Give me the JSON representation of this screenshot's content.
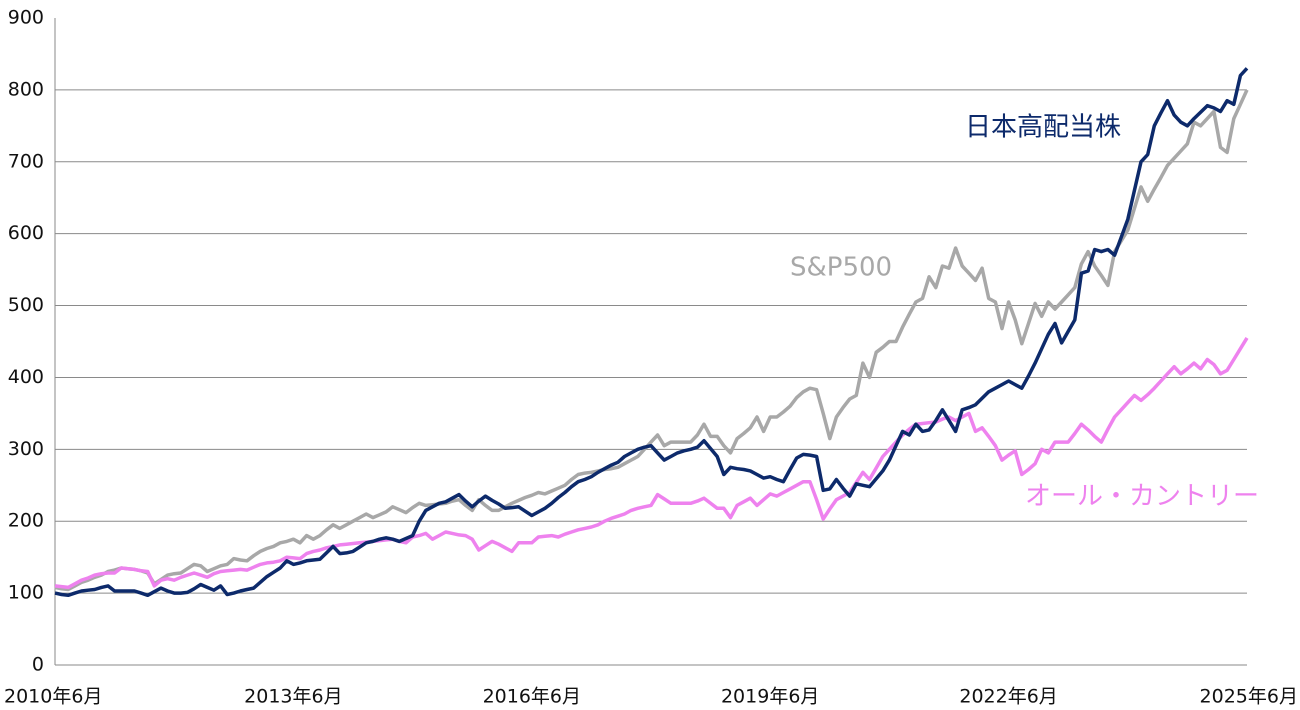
{
  "chart_data": {
    "type": "line",
    "categories": [
      "2010年6月",
      null,
      null,
      null,
      null,
      null,
      null,
      null,
      null,
      null,
      null,
      null,
      null,
      null,
      null,
      null,
      null,
      null,
      null,
      null,
      null,
      null,
      null,
      null,
      null,
      null,
      null,
      null,
      null,
      null,
      null,
      null,
      null,
      null,
      null,
      null,
      "2013年6月",
      null,
      null,
      null,
      null,
      null,
      null,
      null,
      null,
      null,
      null,
      null,
      null,
      null,
      null,
      null,
      null,
      null,
      null,
      null,
      null,
      null,
      null,
      null,
      null,
      null,
      null,
      null,
      null,
      null,
      null,
      null,
      null,
      null,
      null,
      null,
      "2016年6月",
      null,
      null,
      null,
      null,
      null,
      null,
      null,
      null,
      null,
      null,
      null,
      null,
      null,
      null,
      null,
      null,
      null,
      null,
      null,
      null,
      null,
      null,
      null,
      null,
      null,
      null,
      null,
      null,
      null,
      null,
      null,
      null,
      null,
      null,
      null,
      "2019年6月",
      null,
      null,
      null,
      null,
      null,
      null,
      null,
      null,
      null,
      null,
      null,
      null,
      null,
      null,
      null,
      null,
      null,
      null,
      null,
      null,
      null,
      null,
      null,
      null,
      null,
      null,
      null,
      null,
      null,
      null,
      null,
      null,
      null,
      null,
      null,
      "2022年6月",
      null,
      null,
      null,
      null,
      null,
      null,
      null,
      null,
      null,
      null,
      null,
      null,
      null,
      null,
      null,
      null,
      null,
      null,
      null,
      null,
      null,
      null,
      null,
      null,
      null,
      null,
      null,
      null,
      null,
      null,
      null,
      null,
      null,
      null,
      null,
      "2025年6月"
    ],
    "series": [
      {
        "name": "日本高配当株",
        "color": "#0d2a6b",
        "values": [
          100,
          98,
          97,
          100,
          103,
          104,
          105,
          108,
          110,
          103,
          103,
          103,
          103,
          100,
          97,
          102,
          107,
          103,
          100,
          100,
          101,
          106,
          112,
          108,
          104,
          110,
          98,
          100,
          103,
          105,
          107,
          115,
          123,
          129,
          135,
          145,
          140,
          142,
          145,
          146,
          147,
          156,
          165,
          155,
          156,
          158,
          164,
          170,
          172,
          175,
          177,
          175,
          172,
          176,
          180,
          200,
          215,
          220,
          225,
          227,
          232,
          237,
          228,
          220,
          228,
          235,
          229,
          224,
          218,
          219,
          220,
          214,
          208,
          213,
          218,
          225,
          233,
          240,
          248,
          255,
          258,
          262,
          268,
          273,
          278,
          282,
          290,
          295,
          300,
          303,
          305,
          295,
          285,
          290,
          295,
          298,
          300,
          303,
          312,
          301,
          290,
          265,
          275,
          273,
          272,
          270,
          265,
          260,
          262,
          258,
          255,
          272,
          288,
          293,
          292,
          290,
          243,
          245,
          258,
          246,
          235,
          252,
          250,
          248,
          259,
          270,
          285,
          305,
          325,
          320,
          335,
          325,
          327,
          340,
          355,
          340,
          325,
          355,
          358,
          362,
          371,
          380,
          385,
          390,
          395,
          390,
          385,
          402,
          420,
          440,
          460,
          475,
          448,
          464,
          480,
          545,
          548,
          578,
          575,
          578,
          570,
          595,
          620,
          660,
          700,
          710,
          750,
          768,
          785,
          765,
          755,
          750,
          760,
          769,
          778,
          775,
          770,
          785,
          780,
          820,
          830
        ]
      },
      {
        "name": "S&P500",
        "color": "#a8a8a8",
        "values": [
          108,
          106,
          105,
          110,
          115,
          118,
          122,
          125,
          130,
          132,
          135,
          134,
          133,
          131,
          128,
          113,
          119,
          125,
          127,
          128,
          134,
          140,
          138,
          130,
          134,
          138,
          140,
          148,
          146,
          145,
          152,
          158,
          162,
          165,
          170,
          172,
          175,
          170,
          180,
          175,
          180,
          188,
          195,
          190,
          195,
          200,
          205,
          210,
          205,
          209,
          213,
          220,
          216,
          212,
          219,
          225,
          222,
          223,
          224,
          225,
          228,
          230,
          222,
          215,
          230,
          222,
          215,
          215,
          220,
          225,
          229,
          233,
          236,
          240,
          238,
          242,
          246,
          250,
          258,
          265,
          267,
          268,
          270,
          272,
          273,
          275,
          280,
          285,
          290,
          300,
          310,
          320,
          305,
          310,
          310,
          310,
          310,
          320,
          335,
          318,
          318,
          305,
          295,
          315,
          322,
          330,
          345,
          325,
          345,
          345,
          352,
          360,
          372,
          380,
          385,
          383,
          350,
          315,
          345,
          358,
          370,
          375,
          420,
          400,
          435,
          442,
          450,
          450,
          470,
          488,
          505,
          510,
          540,
          525,
          555,
          552,
          580,
          555,
          545,
          535,
          552,
          510,
          505,
          468,
          505,
          480,
          447,
          475,
          503,
          485,
          505,
          495,
          505,
          515,
          525,
          558,
          575,
          555,
          542,
          528,
          575,
          590,
          605,
          635,
          665,
          645,
          662,
          678,
          695,
          705,
          715,
          725,
          755,
          750,
          760,
          770,
          720,
          713,
          760,
          780,
          800
        ]
      },
      {
        "name": "オール・カントリー",
        "color": "#ee82ee",
        "values": [
          110,
          109,
          108,
          113,
          118,
          121,
          125,
          127,
          128,
          128,
          135,
          134,
          133,
          131,
          130,
          110,
          118,
          120,
          118,
          122,
          125,
          128,
          125,
          122,
          127,
          130,
          131,
          132,
          133,
          132,
          136,
          140,
          142,
          143,
          145,
          150,
          149,
          148,
          155,
          158,
          160,
          163,
          165,
          167,
          168,
          169,
          170,
          171,
          172,
          173,
          174,
          175,
          172,
          170,
          178,
          180,
          183,
          175,
          180,
          185,
          183,
          181,
          180,
          175,
          160,
          166,
          172,
          168,
          163,
          158,
          170,
          170,
          170,
          178,
          179,
          180,
          178,
          182,
          185,
          188,
          190,
          192,
          195,
          200,
          204,
          207,
          210,
          215,
          218,
          220,
          222,
          237,
          231,
          225,
          225,
          225,
          225,
          228,
          232,
          225,
          218,
          218,
          205,
          222,
          227,
          232,
          222,
          230,
          238,
          235,
          240,
          245,
          250,
          255,
          255,
          230,
          203,
          217,
          230,
          235,
          240,
          254,
          268,
          258,
          274,
          290,
          300,
          310,
          320,
          328,
          335,
          336,
          337,
          338,
          342,
          345,
          340,
          345,
          350,
          325,
          330,
          318,
          305,
          285,
          292,
          298,
          265,
          272,
          280,
          300,
          295,
          310,
          310,
          310,
          322,
          335,
          327,
          318,
          310,
          328,
          345,
          355,
          365,
          375,
          368,
          376,
          385,
          395,
          405,
          415,
          405,
          412,
          420,
          412,
          425,
          418,
          405,
          410,
          425,
          440,
          455
        ]
      }
    ],
    "ylim": [
      0,
      900
    ],
    "yticks": [
      0,
      100,
      200,
      300,
      400,
      500,
      600,
      700,
      800,
      900
    ],
    "grid": true
  }
}
